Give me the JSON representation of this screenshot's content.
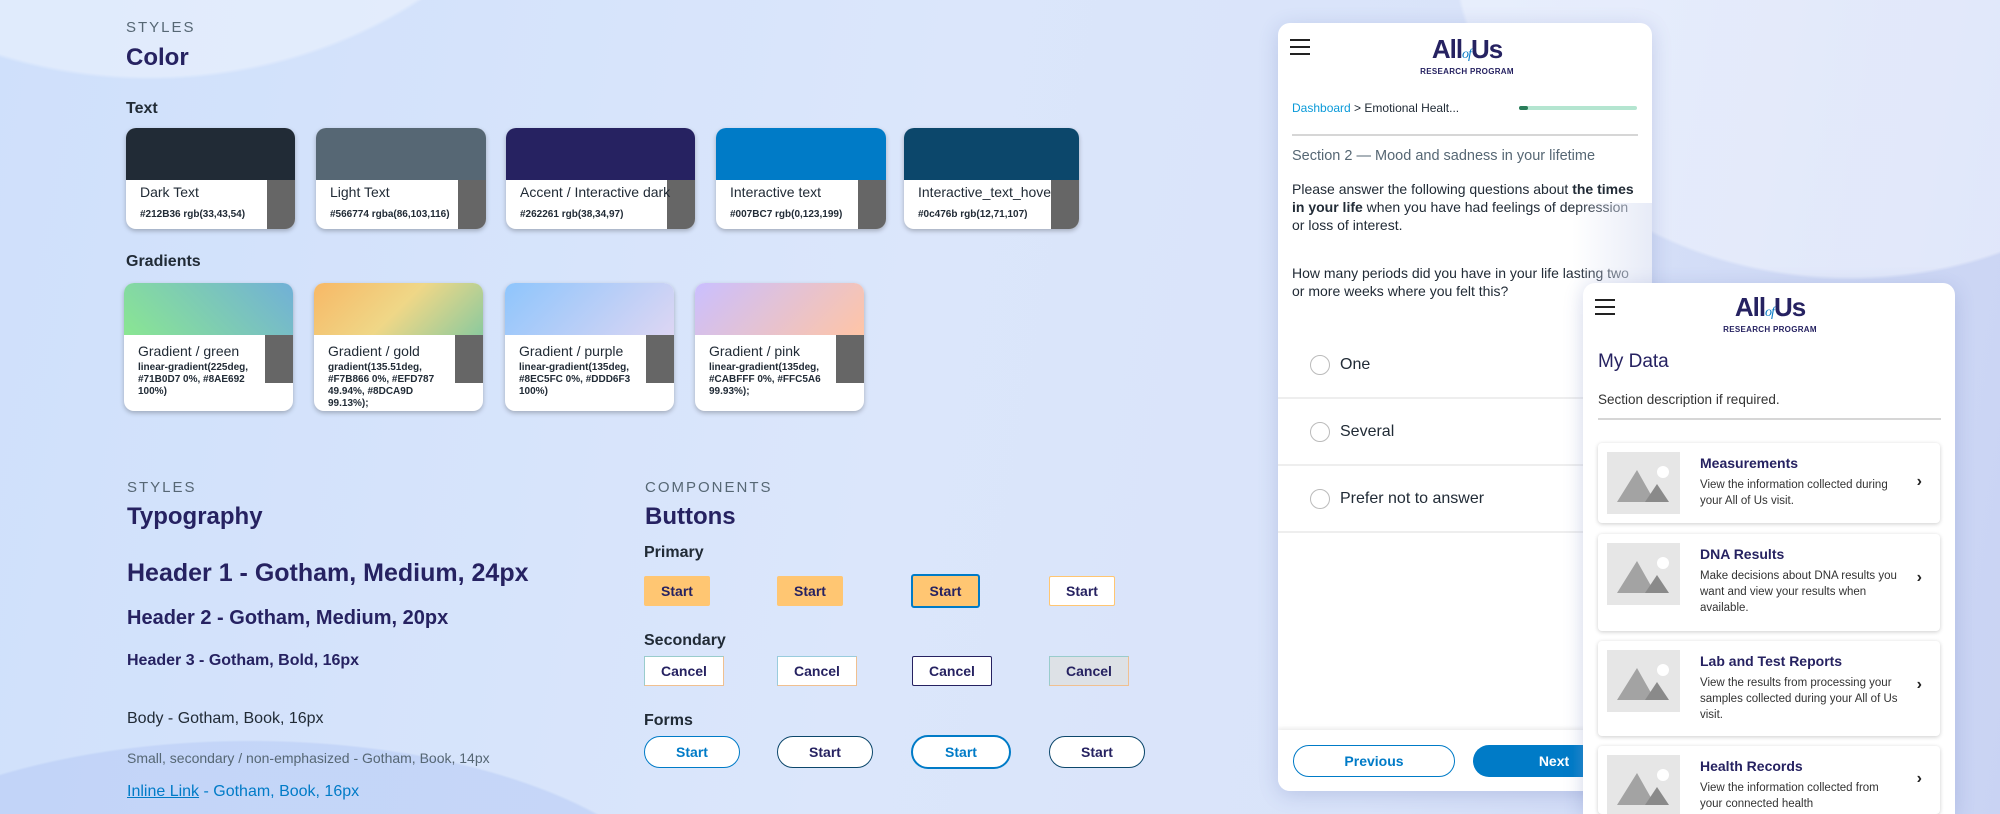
{
  "colors": {
    "accent": "#262261",
    "interactive": "#007BC7",
    "primary_button": "#FFC672",
    "progress": "#2a7d5a"
  },
  "color_section": {
    "eyebrow": "STYLES",
    "title": "Color",
    "text_label": "Text",
    "gradients_label": "Gradients",
    "text_colors": [
      {
        "name": "Dark Text",
        "value": "#212B36 rgb(33,43,54)",
        "hex": "#212B36"
      },
      {
        "name": "Light Text",
        "value": "#566774 rgba(86,103,116)",
        "hex": "#566774"
      },
      {
        "name": "Accent / Interactive dark",
        "value": "#262261 rgb(38,34,97)",
        "hex": "#262261"
      },
      {
        "name": "Interactive text",
        "value": "#007BC7 rgb(0,123,199)",
        "hex": "#007BC7"
      },
      {
        "name": "Interactive_text_hove",
        "value": "#0c476b rgb(12,71,107)",
        "hex": "#0c476b"
      }
    ],
    "gradients": [
      {
        "name": "Gradient / green",
        "value": "linear-gradient(225deg, #71B0D7 0%, #8AE692 100%)",
        "css": "linear-gradient(225deg,#71B0D7 0%,#8AE692 100%)"
      },
      {
        "name": "Gradient / gold",
        "value": "gradient(135.51deg, #F7B866 0%, #EFD787 49.94%, #8DCA9D 99.13%);",
        "css": "linear-gradient(135.51deg,#F7B866 0%,#EFD787 49.94%,#8DCA9D 99.13%)"
      },
      {
        "name": "Gradient / purple",
        "value": "linear-gradient(135deg, #8EC5FC 0%, #DDD6F3 100%)",
        "css": "linear-gradient(135deg,#8EC5FC 0%,#DDD6F3 100%)"
      },
      {
        "name": "Gradient / pink",
        "value": "linear-gradient(135deg, #CABFFF 0%, #FFC5A6 99.93%);",
        "css": "linear-gradient(135deg,#CABFFF 0%,#FFC5A6 99.93%)"
      }
    ]
  },
  "typography": {
    "eyebrow": "STYLES",
    "title": "Typography",
    "h1": "Header 1 - Gotham, Medium, 24px",
    "h2": "Header 2 - Gotham, Medium, 20px",
    "h3": "Header 3 - Gotham, Bold, 16px",
    "body": "Body - Gotham, Book, 16px",
    "small": "Small, secondary / non-emphasized - Gotham, Book, 14px",
    "link": "Inline Link",
    "link_rest": " - Gotham, Book, 16px"
  },
  "components": {
    "eyebrow": "COMPONENTS",
    "title": "Buttons",
    "primary_label": "Primary",
    "secondary_label": "Secondary",
    "forms_label": "Forms",
    "start": "Start",
    "cancel": "Cancel"
  },
  "survey": {
    "logo": "All of Us",
    "logo_of": "of",
    "logo_sub": "RESEARCH PROGRAM",
    "breadcrumb_link": "Dashboard",
    "breadcrumb_rest": " > Emotional Healt...",
    "progress": 0.08,
    "section": "Section 2 — Mood and sadness in your lifetime",
    "intro_pre": "Please answer the following questions about ",
    "intro_bold": "the times in your life",
    "intro_post": " when you have had feelings of depression or loss of interest.",
    "question": "How many periods did you have in your life lasting two or more weeks where you felt this?",
    "options": [
      "One",
      "Several",
      "Prefer not to answer"
    ],
    "previous": "Previous",
    "next": "Next"
  },
  "mydata": {
    "title": "My Data",
    "description": "Section description if required.",
    "items": [
      {
        "title": "Measurements",
        "desc": "View the information collected during your All of Us visit."
      },
      {
        "title": "DNA Results",
        "desc": "Make decisions about DNA results you want and view your results when available."
      },
      {
        "title": "Lab and Test Reports",
        "desc": "View the results from processing your samples collected during your All of Us visit."
      },
      {
        "title": "Health Records",
        "desc": "View the information collected from your connected health"
      }
    ]
  }
}
